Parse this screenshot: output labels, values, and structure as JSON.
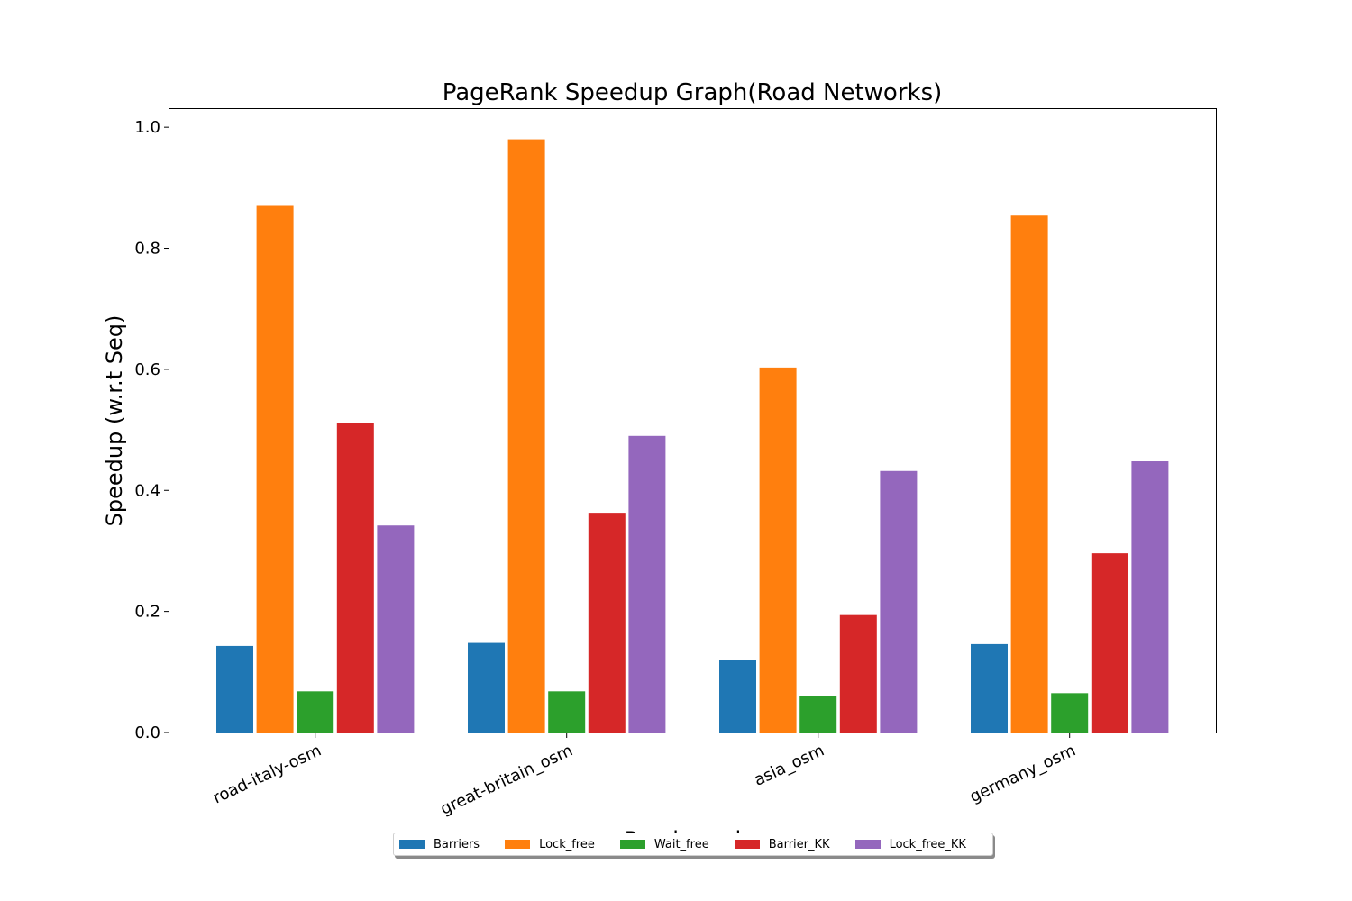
{
  "chart_data": {
    "type": "bar",
    "title": "PageRank Speedup Graph(Road Networks)",
    "xlabel": "Road graphs",
    "ylabel": "Speedup (w.r.t Seq)",
    "categories": [
      "road-italy-osm",
      "great-britain_osm",
      "asia_osm",
      "germany_osm"
    ],
    "ylim": [
      0,
      1.03
    ],
    "yticks": [
      "0.0",
      "0.2",
      "0.4",
      "0.6",
      "0.8",
      "1.0"
    ],
    "grid": false,
    "legend_position": "bottom-center",
    "series": [
      {
        "name": "Barriers",
        "color": "#1f77b4",
        "values": [
          0.143,
          0.148,
          0.12,
          0.146
        ]
      },
      {
        "name": "Lock_free",
        "color": "#ff7f0e",
        "values": [
          0.87,
          0.98,
          0.603,
          0.854
        ]
      },
      {
        "name": "Wait_free",
        "color": "#2ca02c",
        "values": [
          0.068,
          0.068,
          0.06,
          0.065
        ]
      },
      {
        "name": "Barrier_KK",
        "color": "#d62728",
        "values": [
          0.511,
          0.363,
          0.194,
          0.296
        ]
      },
      {
        "name": "Lock_free_KK",
        "color": "#9467bd",
        "values": [
          0.342,
          0.49,
          0.432,
          0.448
        ]
      }
    ]
  }
}
